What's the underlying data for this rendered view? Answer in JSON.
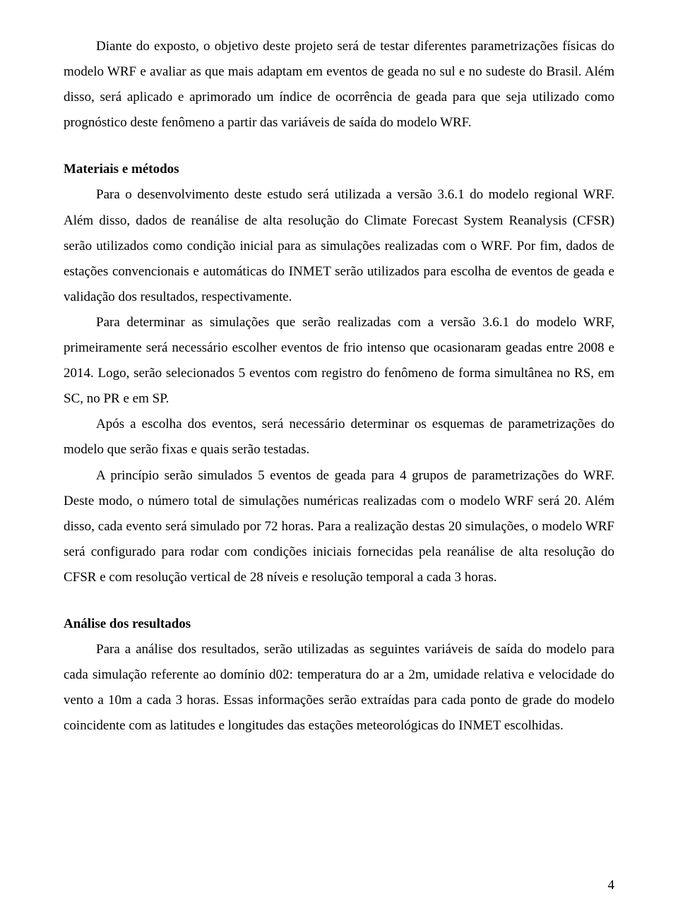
{
  "intro": {
    "p1": "Diante do exposto, o objetivo deste projeto será de testar diferentes parametrizações físicas do modelo WRF e avaliar as que mais adaptam em eventos de geada no sul e no sudeste do Brasil. Além disso, será aplicado e aprimorado um índice de ocorrência de geada para que seja utilizado como prognóstico deste fenômeno a partir das variáveis de saída do modelo WRF."
  },
  "materials": {
    "heading": "Materiais e métodos",
    "p1": "Para o desenvolvimento deste estudo será utilizada a versão 3.6.1 do modelo regional WRF. Além disso, dados de reanálise de alta resolução do Climate Forecast System Reanalysis (CFSR) serão utilizados como condição inicial para as simulações realizadas com o WRF. Por fim, dados de estações convencionais e automáticas do INMET serão utilizados para escolha de eventos de geada e validação dos resultados, respectivamente.",
    "p2": "Para determinar as simulações que serão realizadas com a versão 3.6.1 do modelo WRF, primeiramente será necessário escolher eventos de frio intenso que ocasionaram geadas entre 2008 e 2014. Logo, serão selecionados 5 eventos com registro do fenômeno de forma simultânea no RS, em SC, no PR e em SP.",
    "p3": "Após a escolha dos eventos, será necessário determinar os esquemas de parametrizações do modelo que serão fixas e quais serão testadas.",
    "p4": "A princípio serão simulados 5 eventos de geada para 4 grupos de parametrizações do WRF. Deste modo, o número total de simulações numéricas realizadas com o modelo WRF será 20. Além disso, cada evento será simulado por 72 horas. Para a realização destas 20 simulações, o modelo WRF será configurado para rodar com condições iniciais fornecidas pela reanálise de alta resolução do CFSR e com resolução vertical de 28 níveis e resolução temporal a cada 3 horas."
  },
  "analysis": {
    "heading": "Análise dos resultados",
    "p1": "Para a análise dos resultados, serão utilizadas as seguintes variáveis de saída do modelo para cada simulação referente ao domínio d02: temperatura do ar a 2m, umidade relativa e velocidade do vento a 10m a cada 3 horas. Essas informações serão extraídas para cada ponto de grade do modelo coincidente com as latitudes e longitudes das estações meteorológicas do INMET escolhidas."
  },
  "page_number": "4"
}
